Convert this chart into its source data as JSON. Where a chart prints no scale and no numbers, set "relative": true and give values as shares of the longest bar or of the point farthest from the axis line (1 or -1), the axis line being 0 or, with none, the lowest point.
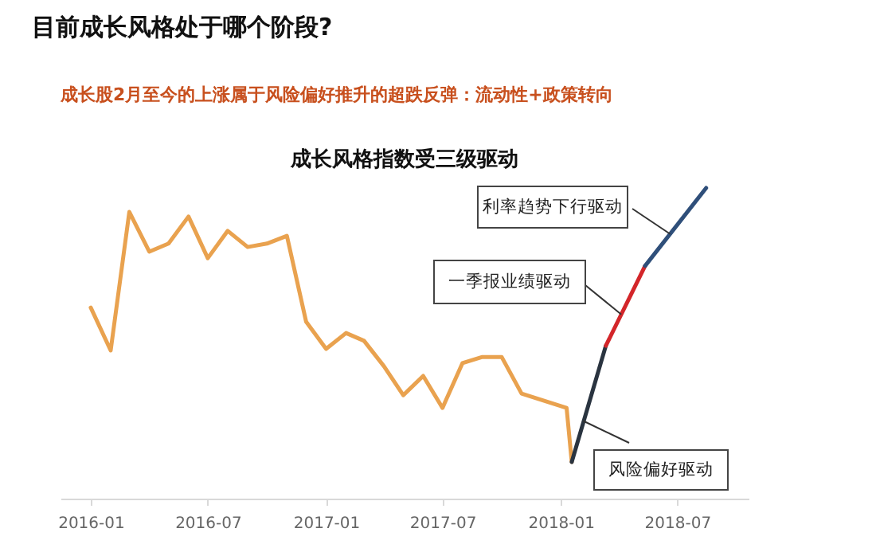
{
  "chart_data": {
    "type": "line",
    "title": "目前成长风格处于哪个阶段?",
    "subtitle": "成长股2月至今的上涨属于风险偏好推升的超跌反弹：流动性+政策转向",
    "relative": true,
    "xlim": [
      "2015-11-15",
      "2018-10-20"
    ],
    "xticks": [
      {
        "value": "2016-01",
        "label": "2016-01"
      },
      {
        "value": "2016-07",
        "label": "2016-07"
      },
      {
        "value": "2017-01",
        "label": "2017-01"
      },
      {
        "value": "2017-07",
        "label": "2017-07"
      },
      {
        "value": "2018-01",
        "label": "2018-01"
      },
      {
        "value": "2018-07",
        "label": "2018-07"
      }
    ],
    "tick_labels": "x",
    "grid": false,
    "legend": false,
    "marker": "none",
    "line_style": "solid",
    "series": [
      {
        "color": "#e9a24f",
        "x": [
          "2016-01",
          "2016-02",
          "2016-03",
          "2016-04",
          "2016-05",
          "2016-06",
          "2016-07",
          "2016-08",
          "2016-09",
          "2016-10",
          "2016-11",
          "2016-12",
          "2017-01",
          "2017-02",
          "2017-03",
          "2017-04",
          "2017-05",
          "2017-06",
          "2017-07",
          "2017-08",
          "2017-09",
          "2017-10",
          "2017-11",
          "2018-01-10",
          "2018-01-18"
        ],
        "values": [
          0.615,
          0.477,
          0.923,
          0.795,
          0.821,
          0.908,
          0.774,
          0.862,
          0.81,
          0.821,
          0.846,
          0.569,
          0.482,
          0.533,
          0.508,
          0.426,
          0.333,
          0.395,
          0.292,
          0.436,
          0.456,
          0.456,
          0.338,
          0.292,
          0.118
        ]
      },
      {
        "color": "#2a3440",
        "x": [
          "2018-01-18",
          "2018-03-12"
        ],
        "values": [
          0.118,
          0.492
        ]
      },
      {
        "color": "#d3262a",
        "x": [
          "2018-03-12",
          "2018-05-12"
        ],
        "values": [
          0.492,
          0.749
        ]
      },
      {
        "color": "#2f4f7a",
        "x": [
          "2018-05-12",
          "2018-08-15"
        ],
        "values": [
          0.749,
          1
        ]
      }
    ],
    "annotations": [
      "成长风格指数受三级驱动",
      {
        "text": "利率趋势下行驱动",
        "x": "2018-06-20",
        "y": 0.852
      },
      {
        "text": "一季报业绩驱动",
        "x": "2018-04-05",
        "y": 0.593
      },
      {
        "text": "风险偏好驱动",
        "x": "2018-02-05",
        "y": 0.25
      }
    ]
  }
}
